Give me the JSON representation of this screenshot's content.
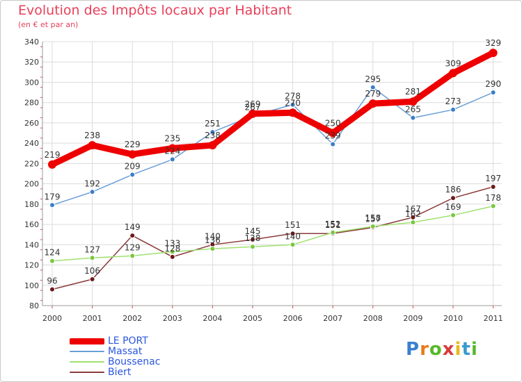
{
  "header": {
    "title": "Evolution des Impôts locaux par Habitant",
    "subtitle": "(en € et par an)"
  },
  "logo": {
    "letters": [
      "P",
      "r",
      "o",
      "x",
      "i",
      "t",
      "i"
    ],
    "colors": [
      "#3a7fd0",
      "#e87a1a",
      "#58b82a",
      "#d83a3a",
      "#e8b81a",
      "#3a9ad0",
      "#58b82a"
    ]
  },
  "chart_data": {
    "type": "line",
    "title": "Evolution des Impôts locaux par Habitant",
    "subtitle": "(en € et par an)",
    "xlabel": "",
    "ylabel": "",
    "x": [
      "2000",
      "2001",
      "2002",
      "2003",
      "2004",
      "2005",
      "2006",
      "2007",
      "2008",
      "2009",
      "2010",
      "2011"
    ],
    "ylim": [
      80,
      340
    ],
    "yticks": [
      80,
      100,
      120,
      140,
      160,
      180,
      200,
      220,
      240,
      260,
      280,
      300,
      320,
      340
    ],
    "grid": true,
    "legend_position": "bottom-left",
    "series": [
      {
        "name": "LE PORT",
        "color": "#ee0000",
        "marker_color": "#ee0000",
        "values": [
          219,
          238,
          229,
          235,
          238,
          269,
          270,
          250,
          279,
          281,
          309,
          329
        ],
        "labels": [
          "219",
          "238",
          "229",
          "235",
          "238",
          "269",
          "270",
          "250",
          "279",
          "281",
          "309",
          "329"
        ]
      },
      {
        "name": "Massat",
        "color": "#6a9ed8",
        "marker_color": "#3a7fc8",
        "values": [
          179,
          192,
          209,
          224,
          251,
          267,
          278,
          239,
          295,
          265,
          273,
          290
        ],
        "labels": [
          "179",
          "192",
          "209",
          "224",
          "251",
          "267",
          "278",
          "239",
          "295",
          "265",
          "273",
          "290"
        ]
      },
      {
        "name": "Boussenac",
        "color": "#a0e070",
        "marker_color": "#78c840",
        "values": [
          124,
          127,
          129,
          133,
          136,
          138,
          140,
          152,
          158,
          162,
          169,
          178
        ],
        "labels": [
          "124",
          "127",
          "129",
          "133",
          "136",
          "138",
          "140",
          "152",
          "158",
          "162",
          "169",
          "178"
        ]
      },
      {
        "name": "Biert",
        "color": "#8a3a3a",
        "marker_color": "#6a1a1a",
        "values": [
          96,
          106,
          149,
          128,
          140,
          145,
          151,
          151,
          157,
          167,
          186,
          197
        ],
        "labels": [
          "96",
          "106",
          "149",
          "128",
          "140",
          "145",
          "151",
          "151",
          "157",
          "167",
          "186",
          "197"
        ]
      }
    ]
  }
}
